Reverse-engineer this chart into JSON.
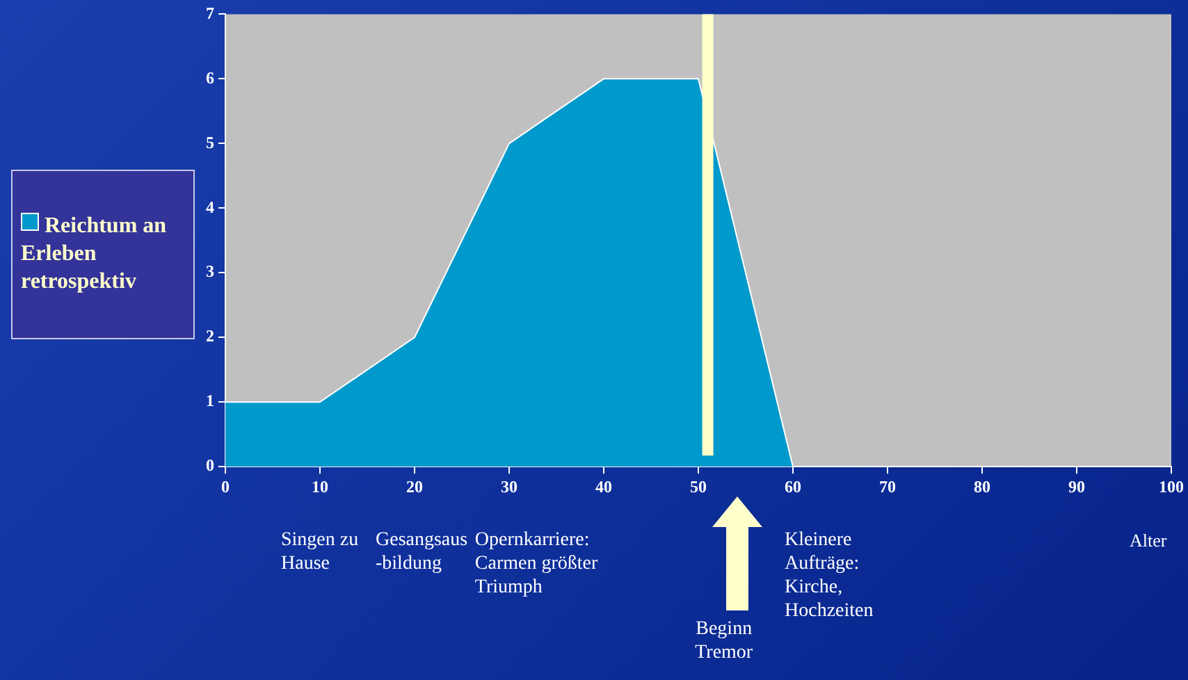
{
  "chart_data": {
    "type": "area",
    "x": [
      0,
      10,
      20,
      30,
      40,
      50,
      60
    ],
    "series": [
      {
        "name": "Reichtum an Erleben retrospektiv",
        "color": "#0099cc",
        "values": [
          1,
          1,
          2,
          5,
          6,
          6,
          0
        ]
      }
    ],
    "xlim": [
      0,
      100
    ],
    "xticks": [
      0,
      10,
      20,
      30,
      40,
      50,
      60,
      70,
      80,
      90,
      100
    ],
    "ylim": [
      0,
      7
    ],
    "yticks": [
      0,
      1,
      2,
      3,
      4,
      5,
      6,
      7
    ],
    "xlabel": "Alter",
    "grid": false,
    "legend": "left",
    "ref_lines": [
      {
        "axis": "x",
        "value": 51,
        "color": "#ffffcc"
      }
    ],
    "annotations": [
      "Singen zu\nHause",
      "Gesangsaus\n-bildung",
      "Opernkarriere:\nCarmen größter\nTriumph",
      "Kleinere\nAufträge:\nKirche,\nHochzeiten",
      "Beginn\nTremor"
    ]
  }
}
